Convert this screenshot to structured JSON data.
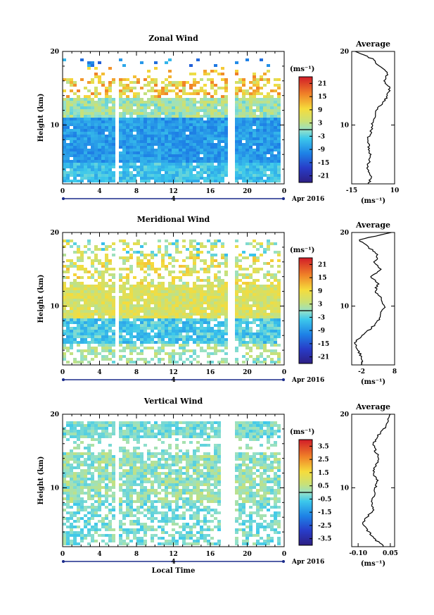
{
  "chart_data": [
    {
      "type": "heatmap",
      "title": "Zonal Wind",
      "ylabel": "Height (km)",
      "x_ticks": [
        "0",
        "4",
        "8",
        "12",
        "16",
        "20",
        "0"
      ],
      "x_range_hours": [
        0,
        24
      ],
      "y_ticks": [
        "10",
        "20"
      ],
      "y_range_km": [
        2,
        20
      ],
      "day_label": "4",
      "date_label": "Apr 2016",
      "data_gaps_hours": [
        [
          5.5,
          5.8
        ],
        [
          17.8,
          18.5
        ]
      ],
      "colorbar": {
        "unit": "(ms⁻¹)",
        "ticks": [
          "21",
          "15",
          "9",
          "3",
          "-3",
          "-9",
          "-15",
          "-21"
        ],
        "range": [
          -24,
          24
        ]
      },
      "profile": {
        "title": "Average",
        "xlabel": "(ms⁻¹)",
        "x_ticks": [
          "-15",
          "10"
        ],
        "xlim": [
          -15,
          10
        ],
        "y_ticks": [
          "10",
          "20"
        ],
        "heights_km": [
          2,
          3,
          4,
          5,
          6,
          7,
          8,
          9,
          10,
          11,
          12,
          13,
          14,
          15,
          16,
          17,
          18,
          19,
          20
        ],
        "values": [
          -5,
          -4,
          -6,
          -5,
          -4,
          -5,
          -6,
          -4,
          -3,
          -2,
          -1,
          3,
          6,
          7,
          4,
          6,
          1,
          -3,
          -13
        ]
      }
    },
    {
      "type": "heatmap",
      "title": "Meridional Wind",
      "ylabel": "Height (km)",
      "x_ticks": [
        "0",
        "4",
        "8",
        "12",
        "16",
        "20",
        "0"
      ],
      "x_range_hours": [
        0,
        24
      ],
      "y_ticks": [
        "10",
        "20"
      ],
      "y_range_km": [
        2,
        20
      ],
      "day_label": "4",
      "date_label": "Apr 2016",
      "data_gaps_hours": [
        [
          5.5,
          5.8
        ],
        [
          17.8,
          18.5
        ]
      ],
      "colorbar": {
        "unit": "(ms⁻¹)",
        "ticks": [
          "21",
          "15",
          "9",
          "3",
          "-3",
          "-9",
          "-15",
          "-21"
        ],
        "range": [
          -24,
          24
        ]
      },
      "profile": {
        "title": "Average",
        "xlabel": "(ms⁻¹)",
        "x_ticks": [
          "-2",
          "8"
        ],
        "xlim": [
          -5,
          8
        ],
        "y_ticks": [
          "10",
          "20"
        ],
        "heights_km": [
          2,
          3,
          4,
          5,
          6,
          7,
          8,
          9,
          10,
          11,
          12,
          13,
          14,
          15,
          16,
          17,
          18,
          19,
          20
        ],
        "values": [
          -2,
          -2,
          -3,
          -4,
          -2,
          1,
          3,
          4,
          5,
          4,
          2,
          3,
          1,
          4,
          2,
          3,
          0,
          -3,
          7
        ]
      }
    },
    {
      "type": "heatmap",
      "title": "Vertical Wind",
      "ylabel": "Height (km)",
      "xlabel": "Local Time",
      "x_ticks": [
        "0",
        "4",
        "8",
        "12",
        "16",
        "20",
        "0"
      ],
      "x_range_hours": [
        0,
        24
      ],
      "y_ticks": [
        "10",
        "20"
      ],
      "y_range_km": [
        2,
        20
      ],
      "day_label": "4",
      "date_label": "Apr 2016",
      "data_gaps_hours": [
        [
          5.5,
          5.8
        ],
        [
          17,
          18.5
        ]
      ],
      "colorbar": {
        "unit": "(ms⁻¹)",
        "ticks": [
          "3.5",
          "2.5",
          "1.5",
          "0.5",
          "-0.5",
          "-1.5",
          "-2.5",
          "-3.5"
        ],
        "range": [
          -4,
          4
        ]
      },
      "profile": {
        "title": "Average",
        "xlabel": "(ms⁻¹)",
        "x_ticks": [
          "-0.10",
          "0.05"
        ],
        "xlim": [
          -0.13,
          0.07
        ],
        "y_ticks": [
          "10",
          "20"
        ],
        "heights_km": [
          2,
          3,
          4,
          5,
          6,
          7,
          8,
          9,
          10,
          11,
          12,
          13,
          14,
          15,
          16,
          17,
          18,
          19,
          20
        ],
        "values": [
          0.02,
          -0.02,
          -0.05,
          -0.08,
          -0.06,
          -0.03,
          -0.04,
          -0.02,
          -0.02,
          -0.01,
          -0.03,
          -0.02,
          0.0,
          -0.02,
          -0.03,
          -0.01,
          0.02,
          0.04,
          0.05
        ]
      }
    }
  ]
}
